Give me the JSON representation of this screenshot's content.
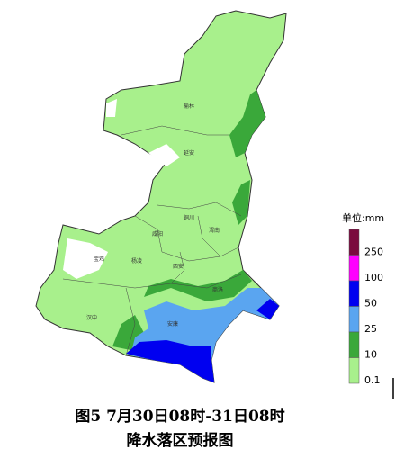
{
  "legend": {
    "title": "单位:mm",
    "items": [
      {
        "label": "250",
        "color": "#7b0a3e"
      },
      {
        "label": "100",
        "color": "#ff00ff"
      },
      {
        "label": "50",
        "color": "#0000f0"
      },
      {
        "label": "25",
        "color": "#5aa5f0"
      },
      {
        "label": "10",
        "color": "#3aa83a"
      },
      {
        "label": "0.1",
        "color": "#a8f08c"
      }
    ]
  },
  "cities": [
    "榆林",
    "延安",
    "铜川",
    "渭南",
    "咸阳",
    "宝鸡",
    "杨凌",
    "西安",
    "商洛",
    "汉中",
    "安康"
  ],
  "caption": [
    "图5 7月30日08时-31日08时",
    "降水落区预报图"
  ]
}
